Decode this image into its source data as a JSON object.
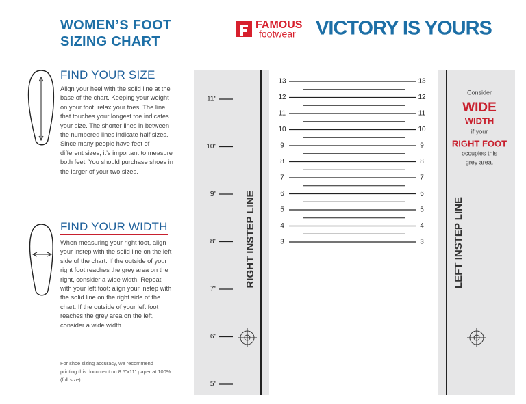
{
  "header": {
    "title_line1": "WOMEN’S FOOT",
    "title_line2": "SIZING CHART",
    "brand_top": "FAMOUS",
    "brand_bottom": "footwear",
    "tagline": "VICTORY IS YOURS"
  },
  "size_section": {
    "heading": "FIND YOUR SIZE",
    "text": "Align your heel with the solid line at the base of the chart. Keeping your weight on your foot, relax your toes. The line that touches your longest toe indicates your size. The shorter lines in between the numbered lines indicate half sizes. Since many people have feet of different sizes, it’s important to measure both feet. You should purchase shoes in the larger of your two sizes."
  },
  "width_section": {
    "heading": "FIND YOUR WIDTH",
    "text": "When measuring your right foot, align your instep with the solid line on the left side of the chart. If the outside of your right foot reaches the grey area on the right, consider a wide width. Repeat with your left foot: align your instep with the solid line on the right side of the chart. If the outside of your left foot reaches the grey area on the left, consider a wide width."
  },
  "footnote": "For shoe sizing accuracy, we recommend printing this document on 8.5”x11” paper at 100% (full size).",
  "ruler": {
    "inch_labels": [
      "11\"",
      "10\"",
      "9\"",
      "8\"",
      "7\"",
      "6\"",
      "5\""
    ]
  },
  "sizes": [
    "13",
    "12",
    "11",
    "10",
    "9",
    "8",
    "7",
    "6",
    "5",
    "4",
    "3"
  ],
  "right_instep": "RIGHT INSTEP LINE",
  "left_instep": "LEFT INSTEP LINE",
  "wide_note": {
    "consider": "Consider",
    "wide": "WIDE",
    "width": "WIDTH",
    "if_your": "if your",
    "right_foot": "RIGHT FOOT",
    "occupies_1": "occupies this",
    "occupies_2": "grey area."
  }
}
